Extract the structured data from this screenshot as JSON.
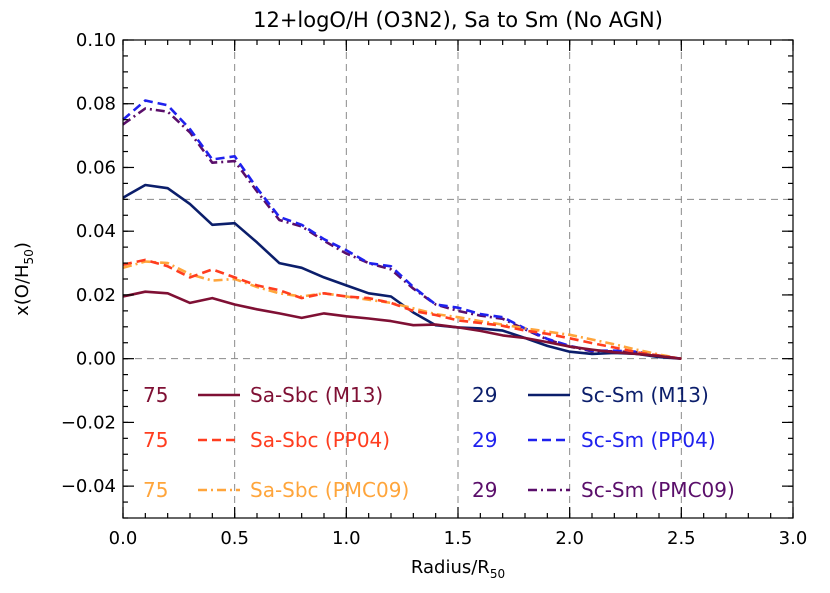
{
  "chart_data": {
    "type": "line",
    "title": "12+logO/H (O3N2), Sa to Sm (No AGN)",
    "xlabel": "Radius/R",
    "xlabel_sub": "50",
    "ylabel": "x(O/H",
    "ylabel_sub": "50",
    "ylabel_close": ")",
    "xlim": [
      0.0,
      3.0
    ],
    "ylim": [
      -0.05,
      0.1
    ],
    "xticks": [
      0.0,
      0.5,
      1.0,
      1.5,
      2.0,
      2.5,
      3.0
    ],
    "yticks": [
      -0.04,
      -0.02,
      0.0,
      0.02,
      0.04,
      0.06,
      0.08,
      0.1
    ],
    "xtick_labels": [
      "0.0",
      "0.5",
      "1.0",
      "1.5",
      "2.0",
      "2.5",
      "3.0"
    ],
    "ytick_labels": [
      "−0.04",
      "−0.02",
      "0.00",
      "0.02",
      "0.04",
      "0.06",
      "0.08",
      "0.10"
    ],
    "grid_x": [
      0.5,
      1.0,
      1.5,
      2.0,
      2.5
    ],
    "grid_y": [
      0.0,
      0.05
    ],
    "x": [
      0.0,
      0.1,
      0.2,
      0.3,
      0.4,
      0.5,
      0.6,
      0.7,
      0.8,
      0.9,
      1.0,
      1.1,
      1.2,
      1.3,
      1.4,
      1.5,
      1.6,
      1.7,
      1.8,
      1.9,
      2.0,
      2.1,
      2.2,
      2.3,
      2.4,
      2.5
    ],
    "series": [
      {
        "name": "Sa-Sbc (M13)",
        "count": "75",
        "style": "solid",
        "color": "#7f1034",
        "values": [
          0.0195,
          0.021,
          0.0205,
          0.0175,
          0.019,
          0.017,
          0.0155,
          0.0142,
          0.0128,
          0.0142,
          0.0133,
          0.0126,
          0.0118,
          0.0105,
          0.0107,
          0.0098,
          0.0087,
          0.0073,
          0.0065,
          0.0052,
          0.0038,
          0.0028,
          0.002,
          0.0015,
          0.0008,
          0.0
        ]
      },
      {
        "name": "Sa-Sbc (PP04)",
        "count": "75",
        "style": "dashed",
        "color": "#ff3d1f",
        "values": [
          0.0295,
          0.031,
          0.029,
          0.0255,
          0.028,
          0.0255,
          0.023,
          0.0215,
          0.019,
          0.0205,
          0.0195,
          0.019,
          0.0175,
          0.015,
          0.0137,
          0.012,
          0.0112,
          0.0103,
          0.0088,
          0.0078,
          0.0064,
          0.0049,
          0.0035,
          0.002,
          0.001,
          0.0
        ]
      },
      {
        "name": "Sa-Sbc (PMC09)",
        "count": "75",
        "style": "dashdot",
        "color": "#ffa53b",
        "values": [
          0.0285,
          0.0305,
          0.03,
          0.0265,
          0.0245,
          0.025,
          0.0225,
          0.0205,
          0.0195,
          0.0205,
          0.0195,
          0.0185,
          0.0175,
          0.0158,
          0.014,
          0.013,
          0.0118,
          0.0107,
          0.0095,
          0.0085,
          0.0075,
          0.006,
          0.0045,
          0.0028,
          0.0013,
          0.0
        ]
      },
      {
        "name": "Sc-Sm (M13)",
        "count": "29",
        "style": "solid",
        "color": "#0b1e6b",
        "values": [
          0.0505,
          0.0545,
          0.0535,
          0.0485,
          0.042,
          0.0425,
          0.0365,
          0.03,
          0.0285,
          0.0255,
          0.023,
          0.0205,
          0.0195,
          0.0145,
          0.0105,
          0.0098,
          0.0095,
          0.0088,
          0.0065,
          0.004,
          0.0022,
          0.0015,
          0.0018,
          0.0015,
          0.0005,
          0.0
        ]
      },
      {
        "name": "Sc-Sm (PP04)",
        "count": "29",
        "style": "dashed",
        "color": "#1f21ee",
        "values": [
          0.075,
          0.081,
          0.0795,
          0.072,
          0.0625,
          0.0635,
          0.0535,
          0.0445,
          0.042,
          0.0375,
          0.034,
          0.03,
          0.029,
          0.0225,
          0.017,
          0.016,
          0.014,
          0.013,
          0.0095,
          0.0062,
          0.004,
          0.0025,
          0.0025,
          0.0022,
          0.001,
          0.0
        ]
      },
      {
        "name": "Sc-Sm (PMC09)",
        "count": "29",
        "style": "dashdot",
        "color": "#5a0e6a",
        "values": [
          0.0735,
          0.0785,
          0.0775,
          0.071,
          0.0615,
          0.062,
          0.0525,
          0.0435,
          0.0415,
          0.037,
          0.033,
          0.03,
          0.028,
          0.022,
          0.017,
          0.015,
          0.0135,
          0.0125,
          0.0092,
          0.006,
          0.0038,
          0.0023,
          0.0023,
          0.002,
          0.0009,
          0.0
        ]
      }
    ],
    "legend": {
      "columns": [
        [
          "Sa-Sbc (M13)",
          "Sa-Sbc (PP04)",
          "Sa-Sbc (PMC09)"
        ],
        [
          "Sc-Sm (M13)",
          "Sc-Sm (PP04)",
          "Sc-Sm (PMC09)"
        ]
      ],
      "placement": "bottom, inside plot"
    }
  }
}
